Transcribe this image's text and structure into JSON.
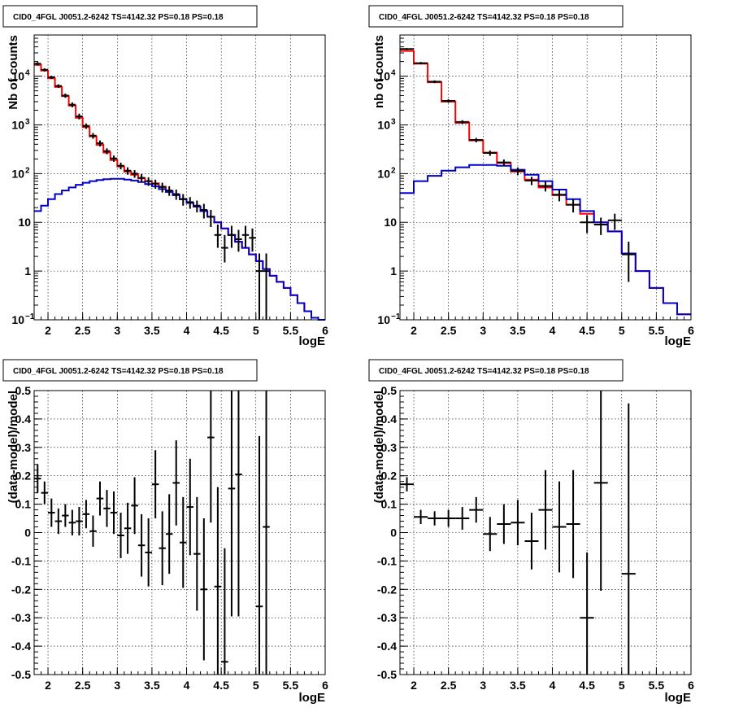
{
  "chart_data": [
    {
      "type": "histogram",
      "title": "CID0_4FGL J0051.2-6242 TS=4142.32 PS=0.18 PS=0.18",
      "xlabel": "logE",
      "ylabel": "Nb of counts",
      "xlim": [
        1.8,
        6.0
      ],
      "ylim": [
        0.1,
        70000
      ],
      "log_y": true,
      "grid": true,
      "x_ticks": [
        "2",
        "2.5",
        "3",
        "3.5",
        "4",
        "4.5",
        "5",
        "5.5",
        "6"
      ],
      "series": [
        {
          "color": "#ff0000",
          "line": "step",
          "edges": [
            1.8,
            1.9,
            2.0,
            2.1,
            2.2,
            2.3,
            2.4,
            2.5,
            2.6,
            2.7,
            2.8,
            2.9,
            3.0,
            3.1,
            3.2,
            3.3,
            3.4,
            3.5,
            3.6,
            3.7,
            3.8,
            3.9,
            4.0,
            4.1,
            4.2,
            4.3,
            4.4,
            4.5,
            4.6,
            4.7,
            4.8,
            4.9,
            5.0,
            5.1,
            5.2,
            5.3,
            5.4,
            5.5,
            5.6,
            5.7,
            5.8,
            5.9,
            6.0
          ],
          "values": [
            17000,
            13000,
            9000,
            6000,
            3900,
            2500,
            1400,
            900,
            580,
            390,
            270,
            190,
            140,
            110,
            95,
            80,
            70,
            63,
            54,
            44,
            37,
            30,
            25,
            21,
            17,
            13,
            10,
            7.5,
            5.5,
            4.0,
            3.0,
            2.2,
            1.6,
            1.1,
            0.8,
            0.6,
            0.45,
            0.32,
            0.22,
            0.15,
            0.11,
            0.09
          ]
        },
        {
          "color": "#0000cc",
          "line": "step",
          "edges": [
            1.8,
            1.9,
            2.0,
            2.1,
            2.2,
            2.3,
            2.4,
            2.5,
            2.6,
            2.7,
            2.8,
            2.9,
            3.0,
            3.1,
            3.2,
            3.3,
            3.4,
            3.5,
            3.6,
            3.7,
            3.8,
            3.9,
            4.0,
            4.1,
            4.2,
            4.3,
            4.4,
            4.5,
            4.6,
            4.7,
            4.8,
            4.9,
            5.0,
            5.1,
            5.2,
            5.3,
            5.4,
            5.5,
            5.6,
            5.7,
            5.8,
            5.9,
            6.0
          ],
          "values": [
            17,
            22,
            30,
            38,
            45,
            52,
            59,
            65,
            70,
            74,
            77,
            78,
            78,
            75,
            72,
            67,
            61,
            55,
            48,
            42,
            36,
            30,
            25,
            21,
            17,
            13,
            10,
            7.5,
            5.5,
            4.0,
            3.0,
            2.2,
            1.6,
            1.1,
            0.8,
            0.6,
            0.45,
            0.32,
            0.22,
            0.15,
            0.11,
            0.09
          ]
        }
      ],
      "points": [
        {
          "x": 1.85,
          "y": 18000,
          "ylo": 16500,
          "yhi": 19500
        },
        {
          "x": 1.95,
          "y": 13500,
          "ylo": 12500,
          "yhi": 14500
        },
        {
          "x": 2.05,
          "y": 9500,
          "ylo": 8800,
          "yhi": 10200
        },
        {
          "x": 2.15,
          "y": 6300,
          "ylo": 5800,
          "yhi": 6800
        },
        {
          "x": 2.25,
          "y": 4000,
          "ylo": 3600,
          "yhi": 4400
        },
        {
          "x": 2.35,
          "y": 2600,
          "ylo": 2300,
          "yhi": 2900
        },
        {
          "x": 2.45,
          "y": 1500,
          "ylo": 1300,
          "yhi": 1700
        },
        {
          "x": 2.55,
          "y": 950,
          "ylo": 830,
          "yhi": 1070
        },
        {
          "x": 2.65,
          "y": 600,
          "ylo": 520,
          "yhi": 680
        },
        {
          "x": 2.75,
          "y": 420,
          "ylo": 360,
          "yhi": 480
        },
        {
          "x": 2.85,
          "y": 290,
          "ylo": 250,
          "yhi": 330
        },
        {
          "x": 2.95,
          "y": 205,
          "ylo": 175,
          "yhi": 235
        },
        {
          "x": 3.05,
          "y": 145,
          "ylo": 122,
          "yhi": 168
        },
        {
          "x": 3.15,
          "y": 115,
          "ylo": 95,
          "yhi": 135
        },
        {
          "x": 3.25,
          "y": 100,
          "ylo": 82,
          "yhi": 118
        },
        {
          "x": 3.35,
          "y": 82,
          "ylo": 66,
          "yhi": 98
        },
        {
          "x": 3.45,
          "y": 70,
          "ylo": 56,
          "yhi": 84
        },
        {
          "x": 3.55,
          "y": 62,
          "ylo": 49,
          "yhi": 75
        },
        {
          "x": 3.65,
          "y": 53,
          "ylo": 41,
          "yhi": 65
        },
        {
          "x": 3.75,
          "y": 45,
          "ylo": 35,
          "yhi": 55
        },
        {
          "x": 3.85,
          "y": 38,
          "ylo": 29,
          "yhi": 47
        },
        {
          "x": 3.95,
          "y": 30,
          "ylo": 22,
          "yhi": 38
        },
        {
          "x": 4.05,
          "y": 26,
          "ylo": 19,
          "yhi": 33
        },
        {
          "x": 4.15,
          "y": 22,
          "ylo": 16,
          "yhi": 28
        },
        {
          "x": 4.25,
          "y": 18,
          "ylo": 12,
          "yhi": 24
        },
        {
          "x": 4.35,
          "y": 13,
          "ylo": 8,
          "yhi": 18
        },
        {
          "x": 4.45,
          "y": 5.5,
          "ylo": 3,
          "yhi": 9
        },
        {
          "x": 4.55,
          "y": 3,
          "ylo": 1.5,
          "yhi": 5.5
        },
        {
          "x": 4.65,
          "y": 5.5,
          "ylo": 3,
          "yhi": 8.5
        },
        {
          "x": 4.75,
          "y": 4.5,
          "ylo": 2.5,
          "yhi": 7
        },
        {
          "x": 4.85,
          "y": 5.5,
          "ylo": 3,
          "yhi": 8.5
        },
        {
          "x": 4.95,
          "y": 4.8,
          "ylo": 2.5,
          "yhi": 7.5
        },
        {
          "x": 5.05,
          "y": 1,
          "ylo": 0.1,
          "yhi": 2.3
        },
        {
          "x": 5.15,
          "y": 1,
          "ylo": 0.1,
          "yhi": 2.3
        }
      ]
    },
    {
      "type": "histogram",
      "title": "CID0_4FGL J0051.2-6242 TS=4142.32 PS=0.18 PS=0.18",
      "xlabel": "logE",
      "ylabel": "nb of counts",
      "xlim": [
        1.8,
        6.0
      ],
      "ylim": [
        0.1,
        70000
      ],
      "log_y": true,
      "grid": true,
      "x_ticks": [
        "2",
        "2.5",
        "3",
        "3.5",
        "4",
        "4.5",
        "5",
        "5.5",
        "6"
      ],
      "series": [
        {
          "color": "#ff0000",
          "line": "step",
          "edges": [
            1.8,
            2.0,
            2.2,
            2.4,
            2.6,
            2.8,
            3.0,
            3.2,
            3.4,
            3.6,
            3.8,
            4.0,
            4.2,
            4.4,
            4.6,
            4.8,
            5.0,
            5.2,
            5.4,
            5.6,
            5.8,
            6.0
          ],
          "values": [
            33000,
            18000,
            7500,
            3000,
            1100,
            480,
            270,
            165,
            110,
            75,
            52,
            36,
            23,
            15,
            10,
            6.5,
            2.3,
            1.0,
            0.45,
            0.22,
            0.13
          ]
        },
        {
          "color": "#0000cc",
          "line": "step",
          "edges": [
            1.8,
            2.0,
            2.2,
            2.4,
            2.6,
            2.8,
            3.0,
            3.2,
            3.4,
            3.6,
            3.8,
            4.0,
            4.2,
            4.4,
            4.6,
            4.8,
            5.0,
            5.2,
            5.4,
            5.6,
            5.8,
            6.0
          ],
          "values": [
            40,
            70,
            90,
            115,
            135,
            150,
            150,
            145,
            120,
            95,
            70,
            47,
            30,
            17,
            10,
            6.5,
            2.3,
            1.0,
            0.45,
            0.22,
            0.13
          ]
        }
      ],
      "points": [
        {
          "x": 1.9,
          "y": 36000,
          "ylo": 34500,
          "yhi": 37500
        },
        {
          "x": 2.1,
          "y": 18500,
          "ylo": 17500,
          "yhi": 19500
        },
        {
          "x": 2.3,
          "y": 7700,
          "ylo": 7200,
          "yhi": 8200
        },
        {
          "x": 2.5,
          "y": 3100,
          "ylo": 2850,
          "yhi": 3350
        },
        {
          "x": 2.7,
          "y": 1150,
          "ylo": 1050,
          "yhi": 1250
        },
        {
          "x": 2.9,
          "y": 490,
          "ylo": 440,
          "yhi": 540
        },
        {
          "x": 3.1,
          "y": 265,
          "ylo": 232,
          "yhi": 298
        },
        {
          "x": 3.3,
          "y": 170,
          "ylo": 145,
          "yhi": 195
        },
        {
          "x": 3.5,
          "y": 114,
          "ylo": 94,
          "yhi": 134
        },
        {
          "x": 3.7,
          "y": 72,
          "ylo": 58,
          "yhi": 86
        },
        {
          "x": 3.9,
          "y": 56,
          "ylo": 43,
          "yhi": 69
        },
        {
          "x": 4.1,
          "y": 37,
          "ylo": 27,
          "yhi": 47
        },
        {
          "x": 4.3,
          "y": 23,
          "ylo": 16,
          "yhi": 30
        },
        {
          "x": 4.5,
          "y": 10,
          "ylo": 6,
          "yhi": 14
        },
        {
          "x": 4.7,
          "y": 9,
          "ylo": 5.5,
          "yhi": 12.5
        },
        {
          "x": 4.9,
          "y": 11,
          "ylo": 7,
          "yhi": 15
        },
        {
          "x": 5.1,
          "y": 2.2,
          "ylo": 0.6,
          "yhi": 4
        }
      ]
    },
    {
      "type": "scatter",
      "title": "CID0_4FGL J0051.2-6242 TS=4142.32 PS=0.18 PS=0.18",
      "xlabel": "logE",
      "ylabel": "(data-model)/model",
      "xlim": [
        1.8,
        6.0
      ],
      "ylim": [
        -0.5,
        0.5
      ],
      "grid": true,
      "x_ticks": [
        "2",
        "2.5",
        "3",
        "3.5",
        "4",
        "4.5",
        "5",
        "5.5",
        "6"
      ],
      "y_ticks": [
        "-0.5",
        "-0.4",
        "-0.3",
        "-0.2",
        "-0.1",
        "0",
        "0.1",
        "0.2",
        "0.3",
        "0.4",
        "0.5"
      ],
      "points": [
        {
          "x": 1.85,
          "y": 0.19,
          "err": 0.05
        },
        {
          "x": 1.95,
          "y": 0.14,
          "err": 0.04
        },
        {
          "x": 2.05,
          "y": 0.07,
          "err": 0.05
        },
        {
          "x": 2.15,
          "y": 0.04,
          "err": 0.045
        },
        {
          "x": 2.25,
          "y": 0.06,
          "err": 0.04
        },
        {
          "x": 2.35,
          "y": 0.035,
          "err": 0.045
        },
        {
          "x": 2.45,
          "y": 0.04,
          "err": 0.05
        },
        {
          "x": 2.55,
          "y": 0.065,
          "err": 0.05
        },
        {
          "x": 2.65,
          "y": 0.005,
          "err": 0.055
        },
        {
          "x": 2.75,
          "y": 0.12,
          "err": 0.06
        },
        {
          "x": 2.85,
          "y": 0.085,
          "err": 0.065
        },
        {
          "x": 2.95,
          "y": 0.07,
          "err": 0.075
        },
        {
          "x": 3.05,
          "y": -0.01,
          "err": 0.08
        },
        {
          "x": 3.15,
          "y": 0.015,
          "err": 0.09
        },
        {
          "x": 3.25,
          "y": 0.095,
          "err": 0.1
        },
        {
          "x": 3.35,
          "y": -0.045,
          "err": 0.11
        },
        {
          "x": 3.45,
          "y": -0.07,
          "err": 0.12
        },
        {
          "x": 3.55,
          "y": 0.17,
          "err": 0.12
        },
        {
          "x": 3.65,
          "y": -0.055,
          "err": 0.13
        },
        {
          "x": 3.75,
          "y": -0.005,
          "err": 0.14
        },
        {
          "x": 3.85,
          "y": 0.175,
          "err": 0.15
        },
        {
          "x": 3.95,
          "y": -0.035,
          "err": 0.16
        },
        {
          "x": 4.05,
          "y": 0.09,
          "err": 0.17
        },
        {
          "x": 4.15,
          "y": -0.075,
          "err": 0.2
        },
        {
          "x": 4.25,
          "y": -0.2,
          "err": 0.25
        },
        {
          "x": 4.35,
          "y": 0.335,
          "err": 0.3
        },
        {
          "x": 4.45,
          "y": -0.19,
          "err": 0.35
        },
        {
          "x": 4.55,
          "y": -0.455,
          "err": 0.4
        },
        {
          "x": 4.65,
          "y": 0.155,
          "err": 0.45
        },
        {
          "x": 4.75,
          "y": 0.205,
          "err": 0.5
        },
        {
          "x": 5.05,
          "y": -0.26,
          "err": 0.6
        },
        {
          "x": 5.15,
          "y": 0.02,
          "err": 0.7
        }
      ]
    },
    {
      "type": "scatter",
      "title": "CID0_4FGL J0051.2-6242 TS=4142.32 PS=0.18 PS=0.18",
      "xlabel": "logE",
      "ylabel": "(data-model)/model",
      "xlim": [
        1.8,
        6.0
      ],
      "ylim": [
        -0.5,
        0.5
      ],
      "grid": true,
      "x_ticks": [
        "2",
        "2.5",
        "3",
        "3.5",
        "4",
        "4.5",
        "5",
        "5.5",
        "6"
      ],
      "y_ticks": [
        "-0.5",
        "-0.4",
        "-0.3",
        "-0.2",
        "-0.1",
        "0",
        "0.1",
        "0.2",
        "0.3",
        "0.4",
        "0.5"
      ],
      "points": [
        {
          "x": 1.9,
          "y": 0.17,
          "err": 0.025
        },
        {
          "x": 2.1,
          "y": 0.055,
          "err": 0.025
        },
        {
          "x": 2.3,
          "y": 0.05,
          "err": 0.025
        },
        {
          "x": 2.5,
          "y": 0.05,
          "err": 0.03
        },
        {
          "x": 2.7,
          "y": 0.05,
          "err": 0.04
        },
        {
          "x": 2.9,
          "y": 0.08,
          "err": 0.045
        },
        {
          "x": 3.1,
          "y": -0.005,
          "err": 0.06
        },
        {
          "x": 3.3,
          "y": 0.03,
          "err": 0.07
        },
        {
          "x": 3.5,
          "y": 0.035,
          "err": 0.08
        },
        {
          "x": 3.7,
          "y": -0.03,
          "err": 0.1
        },
        {
          "x": 3.9,
          "y": 0.08,
          "err": 0.14
        },
        {
          "x": 4.1,
          "y": 0.02,
          "err": 0.16
        },
        {
          "x": 4.3,
          "y": 0.03,
          "err": 0.19
        },
        {
          "x": 4.5,
          "y": -0.3,
          "err": 0.23
        },
        {
          "x": 4.7,
          "y": 0.175,
          "err": 0.38
        },
        {
          "x": 5.1,
          "y": -0.145,
          "err": 0.6
        }
      ]
    }
  ]
}
